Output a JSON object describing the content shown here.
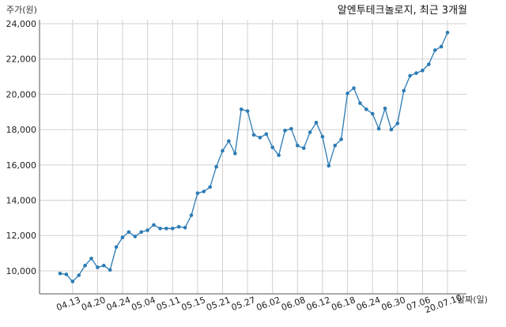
{
  "chart_data": {
    "type": "line",
    "title": "알엔투테크놀로지, 최근 3개월",
    "ylabel": "주가(원)",
    "xlabel": "날짜(일)",
    "ylim": [
      8700,
      24000
    ],
    "yticks": [
      10000,
      12000,
      14000,
      16000,
      18000,
      20000,
      22000,
      24000
    ],
    "ytick_labels": [
      "10,000",
      "12,000",
      "14,000",
      "16,000",
      "18,000",
      "20,000",
      "22,000",
      "24,000"
    ],
    "xtick_labels": [
      "04.13",
      "04.20",
      "04.24",
      "05.04",
      "05.11",
      "05.15",
      "05.21",
      "05.27",
      "06.02",
      "06.08",
      "06.12",
      "06.18",
      "06.24",
      "06.30",
      "07.06",
      "20.07.10"
    ],
    "xtick_index": [
      2,
      6,
      10,
      14,
      18,
      22,
      26,
      30,
      34,
      38,
      42,
      46,
      50,
      54,
      58,
      62
    ],
    "grid": true,
    "line_color": "#2b7bb5",
    "series": [
      {
        "values": [
          9850,
          9800,
          9400,
          9750,
          10300,
          10700,
          10200,
          10300,
          10050,
          11350,
          11900,
          12200,
          11950,
          12200,
          12300,
          12600,
          12400,
          12400,
          12400,
          12500,
          12450,
          13150,
          14400,
          14500,
          14750,
          15900,
          16800,
          17350,
          16650,
          19150,
          19050,
          17700,
          17550,
          17750,
          17000,
          16550,
          17950,
          18050,
          17100,
          16950,
          17850,
          18400,
          17600,
          15950,
          17100,
          17450,
          20050,
          20350,
          19500,
          19150,
          18900,
          18050,
          19200,
          18000,
          18350,
          20200,
          21050,
          21200,
          21350,
          21700,
          22500,
          22700,
          23500
        ]
      }
    ]
  }
}
